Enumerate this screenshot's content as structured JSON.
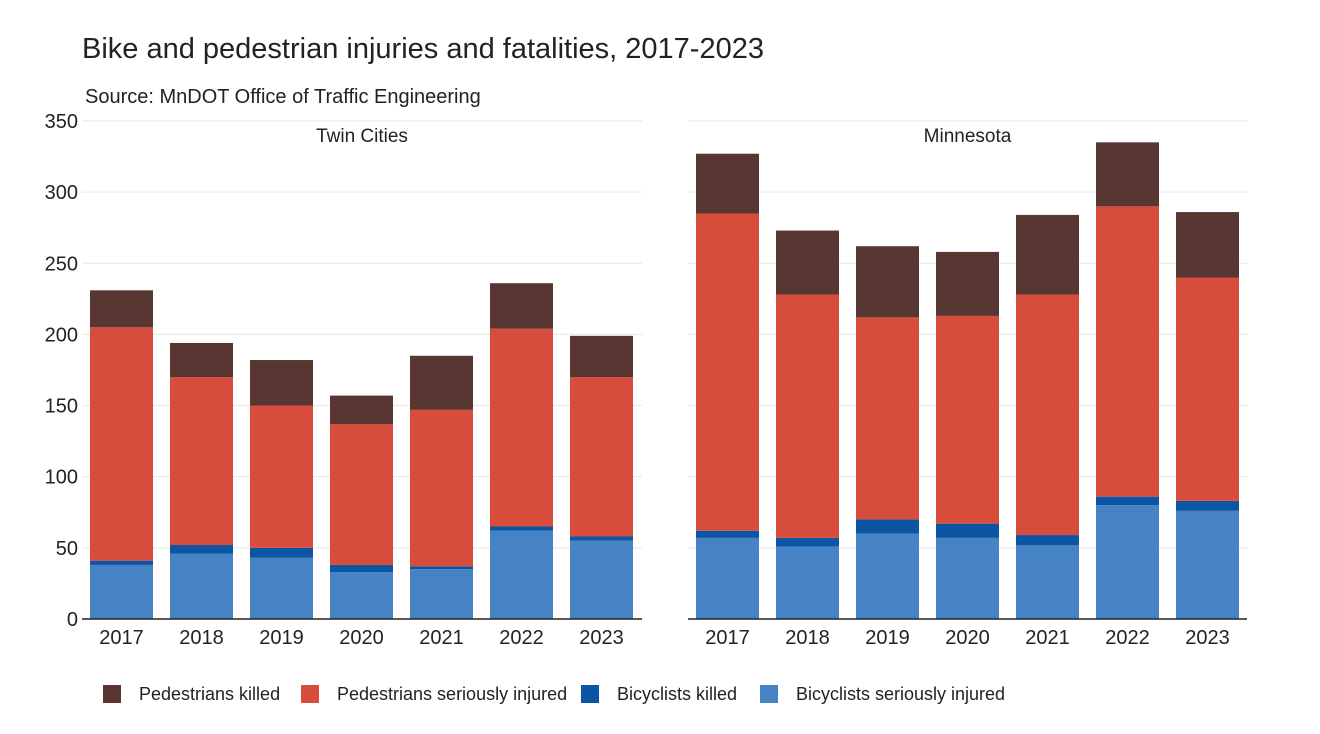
{
  "title": "Bike and pedestrian injuries and fatalities, 2017-2023",
  "subtitle": "Source: MnDOT Office of Traffic Engineering",
  "colors": {
    "pedestrians_killed": "#583631",
    "pedestrians_seriously_injured": "#d84c3b",
    "bicyclists_killed": "#0b56a4",
    "bicyclists_seriously_injured": "#4583c4"
  },
  "chart_data": [
    {
      "type": "bar",
      "stacked": true,
      "panel_title": "Twin Cities",
      "categories": [
        "2017",
        "2018",
        "2019",
        "2020",
        "2021",
        "2022",
        "2023"
      ],
      "series": [
        {
          "name": "Bicyclists seriously injured",
          "values": [
            38,
            46,
            43,
            33,
            35,
            62,
            55
          ]
        },
        {
          "name": "Bicyclists killed",
          "values": [
            3,
            6,
            7,
            5,
            2,
            3,
            3
          ]
        },
        {
          "name": "Pedestrians seriously injured",
          "values": [
            164,
            118,
            100,
            99,
            110,
            139,
            112
          ]
        },
        {
          "name": "Pedestrians killed",
          "values": [
            26,
            24,
            32,
            20,
            38,
            32,
            29
          ]
        }
      ],
      "ylim": [
        0,
        350
      ],
      "yticks": [
        "0",
        "50",
        "100",
        "150",
        "200",
        "250",
        "300",
        "350"
      ],
      "grid": true
    },
    {
      "type": "bar",
      "stacked": true,
      "panel_title": "Minnesota",
      "categories": [
        "2017",
        "2018",
        "2019",
        "2020",
        "2021",
        "2022",
        "2023"
      ],
      "series": [
        {
          "name": "Bicyclists seriously injured",
          "values": [
            57,
            51,
            60,
            57,
            52,
            80,
            76
          ]
        },
        {
          "name": "Bicyclists killed",
          "values": [
            5,
            6,
            10,
            10,
            7,
            6,
            7
          ]
        },
        {
          "name": "Pedestrians seriously injured",
          "values": [
            223,
            171,
            142,
            146,
            169,
            204,
            157
          ]
        },
        {
          "name": "Pedestrians killed",
          "values": [
            42,
            45,
            50,
            45,
            56,
            45,
            46
          ]
        }
      ],
      "ylim": [
        0,
        350
      ],
      "grid": true
    }
  ],
  "legend": {
    "placement": "bottom",
    "items": [
      {
        "label": "Pedestrians killed",
        "color": "#583631"
      },
      {
        "label": "Pedestrians seriously injured",
        "color": "#d84c3b"
      },
      {
        "label": "Bicyclists killed",
        "color": "#0b56a4"
      },
      {
        "label": "Bicyclists seriously injured",
        "color": "#4583c4"
      }
    ]
  }
}
